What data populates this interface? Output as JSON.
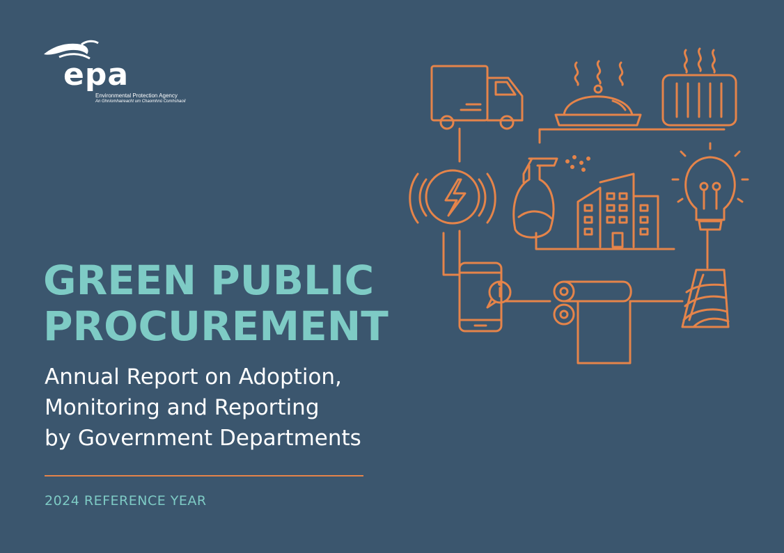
{
  "logo": {
    "name": "epa",
    "line1": "Environmental Protection Agency",
    "line2": "An Ghníomhaireacht um Chaomhnú Comhshaoil"
  },
  "title": {
    "line1": "GREEN PUBLIC",
    "line2": "PROCUREMENT"
  },
  "subtitle": {
    "line1": "Annual Report on Adoption,",
    "line2": "Monitoring and Reporting",
    "line3": "by Government Departments"
  },
  "reference_year": "2024 REFERENCE YEAR",
  "colors": {
    "background": "#3b566e",
    "title": "#7ecbc5",
    "accent": "#e5844a",
    "text": "#ffffff"
  },
  "illustration_icons": [
    "truck-icon",
    "food-cloche-icon",
    "heater-icon",
    "electricity-icon",
    "spray-bottle-icon",
    "building-icon",
    "lightbulb-icon",
    "smartphone-icon",
    "paper-roll-icon",
    "yarn-spool-icon"
  ]
}
